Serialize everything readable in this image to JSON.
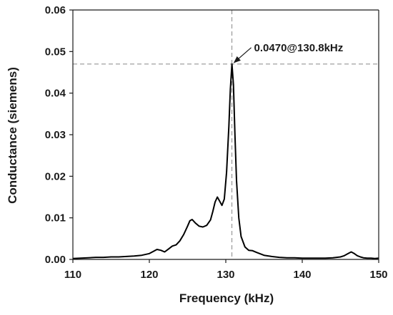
{
  "chart_data": {
    "type": "line",
    "title": "",
    "xlabel": "Frequency (kHz)",
    "ylabel": "Conductance (siemens)",
    "xlim": [
      110,
      150
    ],
    "ylim": [
      0,
      0.06
    ],
    "x_ticks": [
      110,
      120,
      130,
      140,
      150
    ],
    "y_ticks": [
      0.0,
      0.01,
      0.02,
      0.03,
      0.04,
      0.05,
      0.06
    ],
    "x_tick_labels": [
      "110",
      "120",
      "130",
      "140",
      "150"
    ],
    "y_tick_labels": [
      "0.00",
      "0.01",
      "0.02",
      "0.03",
      "0.04",
      "0.05",
      "0.06"
    ],
    "grid": false,
    "legend": "none",
    "series": [
      {
        "color": "#000000",
        "x": [
          110,
          111,
          112,
          113,
          114,
          115,
          116,
          117,
          118,
          119,
          120,
          120.5,
          121,
          121.5,
          122,
          122.5,
          123,
          123.5,
          124,
          124.5,
          125,
          125.3,
          125.6,
          126,
          126.5,
          127,
          127.5,
          128,
          128.3,
          128.6,
          128.9,
          129.2,
          129.5,
          129.8,
          130.1,
          130.4,
          130.6,
          130.8,
          131,
          131.2,
          131.4,
          131.7,
          132,
          132.5,
          133,
          133.5,
          134,
          135,
          136,
          137,
          138,
          139,
          140,
          141,
          142,
          143,
          144,
          145,
          145.5,
          146,
          146.4,
          146.8,
          147.2,
          147.6,
          148,
          148.5,
          149,
          149.5,
          150
        ],
        "y": [
          0.0002,
          0.0003,
          0.0004,
          0.0005,
          0.0005,
          0.0006,
          0.0006,
          0.0007,
          0.0008,
          0.001,
          0.0014,
          0.0019,
          0.0024,
          0.0022,
          0.0018,
          0.0025,
          0.0032,
          0.0035,
          0.0045,
          0.006,
          0.008,
          0.0093,
          0.0096,
          0.0088,
          0.008,
          0.0078,
          0.0082,
          0.0095,
          0.0115,
          0.0138,
          0.015,
          0.014,
          0.013,
          0.0145,
          0.021,
          0.032,
          0.041,
          0.047,
          0.042,
          0.03,
          0.019,
          0.01,
          0.0055,
          0.003,
          0.0022,
          0.0021,
          0.0017,
          0.001,
          0.0007,
          0.0005,
          0.0004,
          0.0004,
          0.0003,
          0.0003,
          0.0003,
          0.0003,
          0.0004,
          0.0006,
          0.0009,
          0.0014,
          0.0018,
          0.0014,
          0.0009,
          0.0006,
          0.0004,
          0.0003,
          0.0003,
          0.0002,
          0.0003
        ]
      }
    ],
    "reference_lines": {
      "x": 130.8,
      "y": 0.047,
      "color": "#888888",
      "style": "dashed"
    },
    "annotation": {
      "text": "0.0470@130.8kHz",
      "x": 130.8,
      "y": 0.047
    }
  }
}
